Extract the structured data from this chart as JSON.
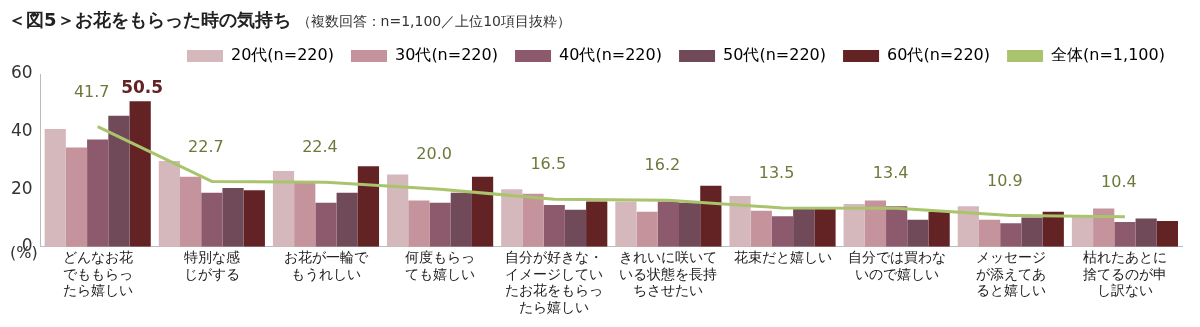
{
  "chart_data": {
    "type": "bar",
    "title": "＜図5＞お花をもらった時の気持ち",
    "subtitle": "（複数回答：n=1,100／上位10項目抜粋）",
    "ylabel": "(%)",
    "categories": [
      "どんなお花でももらったら嬉しい",
      "特別な感じがする",
      "お花が一輪でもうれしい",
      "何度もらっても嬉しい",
      "自分が好きな・イメージしていたお花をもらったら嬉しい",
      "きれいに咲いている状態を長持ちさせたい",
      "花束だと嬉しい",
      "自分では買わないので嬉しい",
      "メッセージが添えてあると嬉しい",
      "枯れたあとに捨てるのが申し訳ない"
    ],
    "series": [
      {
        "name": "20代(n=220)",
        "color": "#d4b8bc",
        "values": [
          40.9,
          29.8,
          26.3,
          25.1,
          20.0,
          15.7,
          17.6,
          14.9,
          14.1,
          10.6
        ]
      },
      {
        "name": "30代(n=220)",
        "color": "#c4939c",
        "values": [
          34.5,
          24.3,
          22.4,
          16.1,
          18.4,
          12.2,
          12.5,
          16.1,
          9.4,
          13.3
        ]
      },
      {
        "name": "40代(n=220)",
        "color": "#8c5a6c",
        "values": [
          37.3,
          18.8,
          15.3,
          15.3,
          14.5,
          15.7,
          10.6,
          14.1,
          8.2,
          8.6
        ]
      },
      {
        "name": "50代(n=220)",
        "color": "#704a58",
        "values": [
          45.5,
          20.4,
          18.8,
          18.8,
          12.9,
          15.3,
          13.7,
          9.4,
          10.2,
          9.8
        ]
      },
      {
        "name": "60代(n=220)",
        "color": "#632224",
        "values": [
          50.5,
          19.6,
          28.0,
          24.3,
          15.7,
          21.2,
          13.7,
          12.2,
          12.2,
          9.0
        ],
        "value_labels": [
          "50.5",
          null,
          null,
          null,
          null,
          null,
          null,
          null,
          null,
          null
        ]
      },
      {
        "name": "全体(n=1,100)",
        "type": "line",
        "color": "#a9c46c",
        "values": [
          41.7,
          22.7,
          22.4,
          20.0,
          16.5,
          16.2,
          13.5,
          13.4,
          10.9,
          10.4
        ],
        "value_labels": [
          "41.7",
          "22.7",
          "22.4",
          "20.0",
          "16.5",
          "16.2",
          "13.5",
          "13.4",
          "10.9",
          "10.4"
        ]
      }
    ],
    "ylim": [
      0,
      60
    ],
    "yticks": [
      0,
      20,
      40,
      60
    ],
    "grid": false,
    "legend": "top right",
    "marker": "none"
  }
}
